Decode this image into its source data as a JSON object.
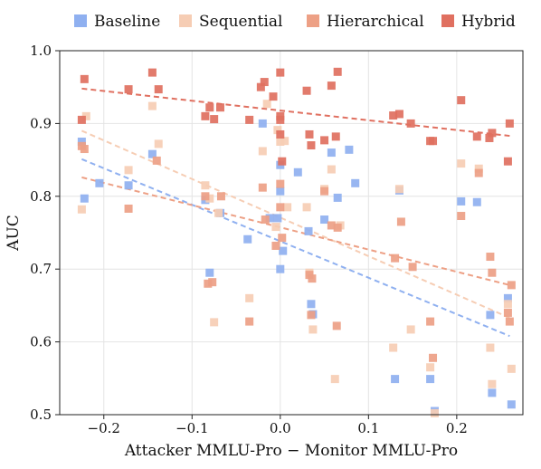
{
  "chart_data": {
    "type": "scatter",
    "xlabel": "Attacker MMLU-Pro − Monitor MMLU-Pro",
    "ylabel": "AUC",
    "xlim": [
      -0.25,
      0.275
    ],
    "ylim": [
      0.5,
      1.0
    ],
    "xticks": [
      -0.2,
      -0.1,
      0.0,
      0.1,
      0.2
    ],
    "xtick_labels": [
      "−0.2",
      "−0.1",
      "0.0",
      "0.1",
      "0.2"
    ],
    "yticks": [
      0.5,
      0.6,
      0.7,
      0.8,
      0.9,
      1.0
    ],
    "ytick_labels": [
      "0.5",
      "0.6",
      "0.7",
      "0.8",
      "0.9",
      "1.0"
    ],
    "grid": true,
    "legend_position": "top",
    "series": [
      {
        "name": "Baseline",
        "color": "#8fb0f0",
        "trend": [
          [
            -0.225,
            0.851
          ],
          [
            0.26,
            0.608
          ]
        ],
        "points": [
          [
            -0.225,
            0.875
          ],
          [
            -0.222,
            0.797
          ],
          [
            -0.205,
            0.818
          ],
          [
            -0.172,
            0.815
          ],
          [
            -0.145,
            0.858
          ],
          [
            -0.085,
            0.795
          ],
          [
            -0.08,
            0.695
          ],
          [
            -0.068,
            0.777
          ],
          [
            -0.037,
            0.741
          ],
          [
            -0.02,
            0.9
          ],
          [
            -0.012,
            0.77
          ],
          [
            -0.003,
            0.77
          ],
          [
            0.0,
            0.843
          ],
          [
            0.0,
            0.807
          ],
          [
            0.0,
            0.7
          ],
          [
            0.003,
            0.725
          ],
          [
            0.02,
            0.833
          ],
          [
            0.032,
            0.752
          ],
          [
            0.035,
            0.652
          ],
          [
            0.037,
            0.638
          ],
          [
            0.05,
            0.768
          ],
          [
            0.058,
            0.86
          ],
          [
            0.065,
            0.798
          ],
          [
            0.078,
            0.864
          ],
          [
            0.085,
            0.818
          ],
          [
            0.13,
            0.549
          ],
          [
            0.135,
            0.808
          ],
          [
            0.17,
            0.549
          ],
          [
            0.175,
            0.505
          ],
          [
            0.205,
            0.793
          ],
          [
            0.223,
            0.792
          ],
          [
            0.238,
            0.637
          ],
          [
            0.24,
            0.53
          ],
          [
            0.258,
            0.66
          ],
          [
            0.262,
            0.514
          ]
        ]
      },
      {
        "name": "Sequential",
        "color": "#f6cdb4",
        "trend": [
          [
            -0.225,
            0.89
          ],
          [
            0.26,
            0.633
          ]
        ],
        "points": [
          [
            -0.225,
            0.782
          ],
          [
            -0.22,
            0.91
          ],
          [
            -0.172,
            0.836
          ],
          [
            -0.145,
            0.924
          ],
          [
            -0.138,
            0.872
          ],
          [
            -0.085,
            0.815
          ],
          [
            -0.08,
            0.797
          ],
          [
            -0.075,
            0.627
          ],
          [
            -0.07,
            0.777
          ],
          [
            -0.035,
            0.66
          ],
          [
            -0.02,
            0.862
          ],
          [
            -0.015,
            0.927
          ],
          [
            -0.005,
            0.758
          ],
          [
            -0.003,
            0.891
          ],
          [
            0.0,
            0.875
          ],
          [
            0.005,
            0.876
          ],
          [
            0.008,
            0.785
          ],
          [
            0.03,
            0.785
          ],
          [
            0.033,
            0.695
          ],
          [
            0.037,
            0.617
          ],
          [
            0.05,
            0.81
          ],
          [
            0.058,
            0.837
          ],
          [
            0.062,
            0.549
          ],
          [
            0.068,
            0.76
          ],
          [
            0.128,
            0.592
          ],
          [
            0.135,
            0.81
          ],
          [
            0.148,
            0.617
          ],
          [
            0.17,
            0.565
          ],
          [
            0.175,
            0.502
          ],
          [
            0.205,
            0.845
          ],
          [
            0.225,
            0.838
          ],
          [
            0.238,
            0.592
          ],
          [
            0.24,
            0.542
          ],
          [
            0.258,
            0.652
          ],
          [
            0.262,
            0.563
          ]
        ]
      },
      {
        "name": "Hierarchical",
        "color": "#eda085",
        "trend": [
          [
            -0.225,
            0.826
          ],
          [
            0.26,
            0.678
          ]
        ],
        "points": [
          [
            -0.225,
            0.869
          ],
          [
            -0.222,
            0.865
          ],
          [
            -0.172,
            0.783
          ],
          [
            -0.14,
            0.849
          ],
          [
            -0.085,
            0.8
          ],
          [
            -0.082,
            0.68
          ],
          [
            -0.077,
            0.682
          ],
          [
            -0.067,
            0.8
          ],
          [
            -0.035,
            0.628
          ],
          [
            -0.02,
            0.812
          ],
          [
            -0.017,
            0.768
          ],
          [
            -0.005,
            0.732
          ],
          [
            0.0,
            0.817
          ],
          [
            0.0,
            0.785
          ],
          [
            0.002,
            0.743
          ],
          [
            0.033,
            0.692
          ],
          [
            0.035,
            0.637
          ],
          [
            0.036,
            0.687
          ],
          [
            0.05,
            0.807
          ],
          [
            0.058,
            0.76
          ],
          [
            0.064,
            0.622
          ],
          [
            0.065,
            0.757
          ],
          [
            0.13,
            0.715
          ],
          [
            0.137,
            0.765
          ],
          [
            0.15,
            0.703
          ],
          [
            0.17,
            0.628
          ],
          [
            0.173,
            0.578
          ],
          [
            0.205,
            0.773
          ],
          [
            0.225,
            0.832
          ],
          [
            0.238,
            0.717
          ],
          [
            0.24,
            0.695
          ],
          [
            0.258,
            0.64
          ],
          [
            0.26,
            0.628
          ],
          [
            0.262,
            0.678
          ]
        ]
      },
      {
        "name": "Hybrid",
        "color": "#e07060",
        "trend": [
          [
            -0.225,
            0.948
          ],
          [
            0.26,
            0.883
          ]
        ],
        "points": [
          [
            -0.225,
            0.905
          ],
          [
            -0.222,
            0.961
          ],
          [
            -0.172,
            0.947
          ],
          [
            -0.145,
            0.97
          ],
          [
            -0.138,
            0.947
          ],
          [
            -0.085,
            0.91
          ],
          [
            -0.08,
            0.922
          ],
          [
            -0.075,
            0.906
          ],
          [
            -0.068,
            0.922
          ],
          [
            -0.035,
            0.905
          ],
          [
            -0.022,
            0.95
          ],
          [
            -0.018,
            0.957
          ],
          [
            -0.008,
            0.937
          ],
          [
            0.0,
            0.97
          ],
          [
            0.0,
            0.91
          ],
          [
            0.0,
            0.905
          ],
          [
            0.0,
            0.885
          ],
          [
            0.002,
            0.848
          ],
          [
            0.03,
            0.945
          ],
          [
            0.033,
            0.885
          ],
          [
            0.035,
            0.87
          ],
          [
            0.05,
            0.877
          ],
          [
            0.058,
            0.952
          ],
          [
            0.063,
            0.882
          ],
          [
            0.065,
            0.971
          ],
          [
            0.128,
            0.911
          ],
          [
            0.135,
            0.913
          ],
          [
            0.148,
            0.9
          ],
          [
            0.17,
            0.876
          ],
          [
            0.173,
            0.876
          ],
          [
            0.205,
            0.932
          ],
          [
            0.223,
            0.882
          ],
          [
            0.237,
            0.88
          ],
          [
            0.24,
            0.887
          ],
          [
            0.26,
            0.9
          ],
          [
            0.258,
            0.848
          ]
        ]
      }
    ]
  }
}
